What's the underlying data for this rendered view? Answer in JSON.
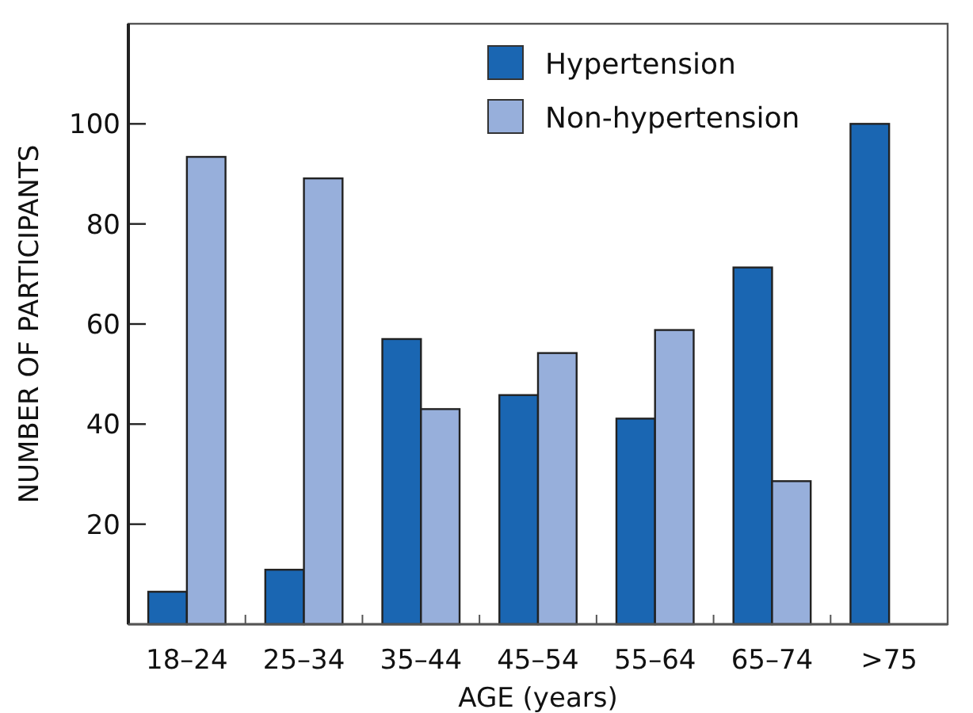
{
  "chart_data": {
    "type": "bar",
    "xlabel": "AGE (years)",
    "ylabel": "NUMBER OF PARTICIPANTS",
    "categories": [
      "18–24",
      "25–34",
      "35–44",
      "45–54",
      "55–64",
      "65–74",
      ">75"
    ],
    "series": [
      {
        "name": "Hypertension",
        "color": "#1a66b2",
        "values": [
          6.5,
          10.9,
          57,
          45.8,
          41.1,
          71.3,
          100
        ]
      },
      {
        "name": "Non-hypertension",
        "color": "#97afdb",
        "values": [
          93.4,
          89.1,
          43,
          54.2,
          58.8,
          28.6,
          null
        ]
      }
    ],
    "ylim": [
      0,
      120
    ],
    "yticks": [
      20,
      40,
      60,
      80,
      100
    ],
    "grid": false,
    "legend": "top right"
  }
}
